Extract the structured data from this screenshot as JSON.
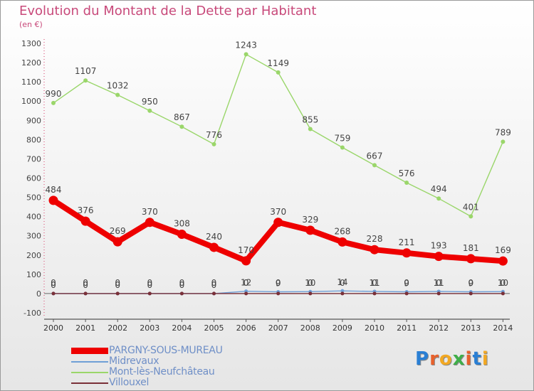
{
  "title": "Evolution du Montant de la Dette par Habitant",
  "unit": "(en €)",
  "logo_text": "Proxiti",
  "chart_data": {
    "type": "line",
    "title": "Evolution du Montant de la Dette par Habitant",
    "subtitle": "(en €)",
    "xlabel": "",
    "ylabel": "",
    "x": [
      "2000",
      "2001",
      "2002",
      "2003",
      "2004",
      "2005",
      "2006",
      "2007",
      "2008",
      "2009",
      "2010",
      "2011",
      "2012",
      "2013",
      "2014"
    ],
    "ylim": [
      -100,
      1300
    ],
    "yticks": [
      -100,
      0,
      100,
      200,
      300,
      400,
      500,
      600,
      700,
      800,
      900,
      1000,
      1100,
      1200,
      1300
    ],
    "grid": false,
    "legend_position": "bottom-left",
    "series": [
      {
        "name": "PARGNY-SOUS-MUREAU",
        "color": "#ee0000",
        "values": [
          484,
          376,
          269,
          370,
          308,
          240,
          170,
          370,
          329,
          268,
          228,
          211,
          193,
          181,
          169
        ],
        "labels": [
          "484",
          "376",
          "269",
          "370",
          "308",
          "240",
          "170",
          "370",
          "329",
          "268",
          "228",
          "211",
          "193",
          "181",
          "169"
        ]
      },
      {
        "name": "Midrevaux",
        "color": "#6f9fd6",
        "values": [
          0,
          0,
          0,
          0,
          0,
          0,
          12,
          9,
          10,
          14,
          11,
          9,
          11,
          9,
          10
        ],
        "labels": [
          "0",
          "0",
          "0",
          "0",
          "0",
          "0",
          "12",
          "9",
          "10",
          "14",
          "11",
          "9",
          "11",
          "9",
          "10"
        ]
      },
      {
        "name": "Mont-lès-Neufchâteau",
        "color": "#9ad66a",
        "values": [
          990,
          1107,
          1032,
          950,
          867,
          776,
          1243,
          1149,
          855,
          759,
          667,
          576,
          494,
          401,
          789
        ],
        "labels": [
          "990",
          "1107",
          "1032",
          "950",
          "867",
          "776",
          "1243",
          "1149",
          "855",
          "759",
          "667",
          "576",
          "494",
          "401",
          "789"
        ]
      },
      {
        "name": "Villouxel",
        "color": "#7a3038",
        "values": [
          0,
          0,
          0,
          0,
          0,
          0,
          0,
          0,
          0,
          0,
          0,
          0,
          0,
          0,
          0
        ],
        "labels": [
          "0",
          "0",
          "0",
          "0",
          "0",
          "0",
          "0",
          "0",
          "0",
          "0",
          "0",
          "0",
          "0",
          "0",
          "0"
        ]
      }
    ]
  }
}
